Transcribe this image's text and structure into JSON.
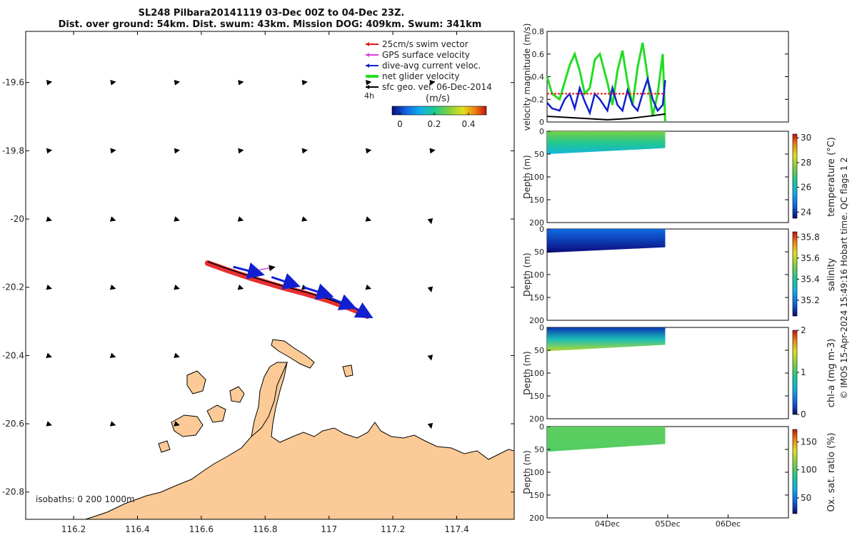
{
  "title": {
    "line1": "SL248 Pilbara20141119 03-Dec 00Z to 04-Dec 23Z.",
    "line2": "Dist. over ground: 54km. Dist. swum: 43km. Mission DOG: 409km. Swum: 341km"
  },
  "footer": "© IMOS 15-Apr-2024 15:49:16 Hobart time. QC flags 1  2",
  "colors": {
    "land": "#fcca96",
    "swim": "#e41a1c",
    "gps": "#e040e0",
    "current": "#1020d0",
    "net": "#22dd22",
    "sfc": "#000000"
  },
  "chart_data": [
    {
      "type": "map",
      "legend": {
        "items": [
          {
            "label": "25cm/s swim vector",
            "color": "#e41a1c"
          },
          {
            "label": "GPS surface velocity",
            "color": "#e040e0"
          },
          {
            "label": "dive-avg current veloc.",
            "color": "#1020d0"
          },
          {
            "label": "net glider velocity",
            "color": "#22dd22"
          },
          {
            "label": "sfc geo. vel. 06-Dec-2014",
            "color": "#000000"
          }
        ],
        "hours": "4h",
        "colorbar_label": "(m/s)",
        "colorbar_ticks": [
          "0",
          "0.2",
          "0.4"
        ],
        "position": "top-right"
      },
      "xlim": [
        116.05,
        117.58
      ],
      "ylim": [
        -20.88,
        -19.45
      ],
      "xticks": [
        116.2,
        116.4,
        116.6,
        116.8,
        117,
        117.2,
        117.4
      ],
      "xtick_labels": [
        "116.2",
        "116.4",
        "116.6",
        "116.8",
        "117",
        "117.2",
        "117.4"
      ],
      "yticks": [
        -19.6,
        -19.8,
        -20,
        -20.2,
        -20.4,
        -20.6,
        -20.8
      ],
      "ytick_labels": [
        "-19.6",
        "-19.8",
        "-20",
        "-20.2",
        "-20.4",
        "-20.6",
        "-20.8"
      ],
      "isobaths": "isobaths: 0   200  1000m",
      "track": {
        "lon": [
          116.62,
          116.68,
          116.76,
          116.85,
          116.93,
          117.0,
          117.06,
          117.1,
          117.12
        ],
        "lat": [
          -20.125,
          -20.145,
          -20.17,
          -20.195,
          -20.215,
          -20.235,
          -20.255,
          -20.27,
          -20.28
        ]
      },
      "current_vectors": [
        {
          "lon": 116.7,
          "lat": -20.14,
          "u": 0.23,
          "v": -0.06
        },
        {
          "lon": 116.82,
          "lat": -20.17,
          "u": 0.21,
          "v": -0.07
        },
        {
          "lon": 116.92,
          "lat": -20.2,
          "u": 0.22,
          "v": -0.07
        },
        {
          "lon": 117.0,
          "lat": -20.23,
          "u": 0.2,
          "v": -0.08
        },
        {
          "lon": 117.06,
          "lat": -20.25,
          "u": 0.18,
          "v": -0.1
        }
      ]
    },
    {
      "type": "line",
      "ylabel": "velocity magnitude (m/s)",
      "ylim": [
        0,
        0.8
      ],
      "yticks": [
        "0",
        "0.2",
        "0.4",
        "0.6",
        "0.8"
      ],
      "xlim": [
        "03-Dec",
        "07-Dec"
      ],
      "series": [
        {
          "color": "#22dd22",
          "x": [
            "03-Dec 00:00",
            "03-Dec 02:00",
            "03-Dec 05:00",
            "03-Dec 07:00",
            "03-Dec 09:00",
            "03-Dec 11:00",
            "03-Dec 13:00",
            "03-Dec 15:00",
            "03-Dec 17:00",
            "03-Dec 19:00",
            "03-Dec 21:00",
            "04-Dec 00:00",
            "04-Dec 02:00",
            "04-Dec 04:00",
            "04-Dec 06:00",
            "04-Dec 08:00",
            "04-Dec 10:00",
            "04-Dec 12:00",
            "04-Dec 14:00",
            "04-Dec 16:00",
            "04-Dec 18:00",
            "04-Dec 20:00",
            "04-Dec 22:00",
            "04-Dec 23:00"
          ],
          "values": [
            0.4,
            0.25,
            0.2,
            0.35,
            0.5,
            0.6,
            0.45,
            0.25,
            0.3,
            0.55,
            0.6,
            0.35,
            0.15,
            0.45,
            0.63,
            0.35,
            0.15,
            0.48,
            0.7,
            0.4,
            0.05,
            0.25,
            0.6,
            0.0
          ]
        },
        {
          "color": "#1020d0",
          "x": [
            "03-Dec 00:00",
            "03-Dec 02:00",
            "03-Dec 05:00",
            "03-Dec 07:00",
            "03-Dec 09:00",
            "03-Dec 11:00",
            "03-Dec 13:00",
            "03-Dec 15:00",
            "03-Dec 17:00",
            "03-Dec 19:00",
            "03-Dec 21:00",
            "04-Dec 00:00",
            "04-Dec 02:00",
            "04-Dec 04:00",
            "04-Dec 06:00",
            "04-Dec 08:00",
            "04-Dec 10:00",
            "04-Dec 12:00",
            "04-Dec 14:00",
            "04-Dec 16:00",
            "04-Dec 18:00",
            "04-Dec 20:00",
            "04-Dec 22:00",
            "04-Dec 23:00"
          ],
          "values": [
            0.17,
            0.12,
            0.1,
            0.2,
            0.25,
            0.12,
            0.3,
            0.18,
            0.08,
            0.25,
            0.2,
            0.1,
            0.3,
            0.15,
            0.1,
            0.28,
            0.15,
            0.1,
            0.25,
            0.38,
            0.2,
            0.1,
            0.15,
            0.37
          ]
        },
        {
          "color": "#e41a1c",
          "x": [
            "03-Dec 00:00",
            "04-Dec 23:00"
          ],
          "values": [
            0.25,
            0.25
          ]
        },
        {
          "color": "#000000",
          "x": [
            "03-Dec 00:00",
            "03-Dec 08:00",
            "03-Dec 16:00",
            "04-Dec 00:00",
            "04-Dec 08:00",
            "04-Dec 16:00",
            "04-Dec 23:00"
          ],
          "values": [
            0.05,
            0.04,
            0.03,
            0.02,
            0.03,
            0.05,
            0.07
          ]
        }
      ]
    },
    {
      "type": "heatmap",
      "ylabel": "Depth (m)",
      "ylim": [
        0,
        200
      ],
      "yticks": [
        "0",
        "50",
        "100",
        "150",
        "200"
      ],
      "cbar_label": "temperature (°C)",
      "cbar_ticks": [
        "24",
        "26",
        "28",
        "30"
      ],
      "cbar_range": [
        23.5,
        30.3
      ],
      "colormap": [
        "#0a0a78",
        "#1060e0",
        "#10b0e8",
        "#20c890",
        "#80d040",
        "#e0e020",
        "#f08010",
        "#c01010"
      ],
      "surface_value": 27.3,
      "deep_value": 25.6,
      "profile_depth_start": 50,
      "profile_depth_end": 37
    },
    {
      "type": "heatmap",
      "ylabel": "Depth (m)",
      "ylim": [
        0,
        200
      ],
      "yticks": [
        "0",
        "50",
        "100",
        "150",
        "200"
      ],
      "cbar_label": "salinity",
      "cbar_ticks": [
        "35.2",
        "35.4",
        "35.6",
        "35.8"
      ],
      "cbar_range": [
        35.05,
        35.85
      ],
      "colormap": [
        "#0a0a78",
        "#1060e0",
        "#10b0e8",
        "#20c890",
        "#80d040",
        "#e0e020",
        "#f08010",
        "#c01010"
      ],
      "surface_value": 35.18,
      "deep_value": 35.05,
      "profile_depth_start": 52,
      "profile_depth_end": 40
    },
    {
      "type": "heatmap",
      "ylabel": "Depth (m)",
      "ylim": [
        0,
        200
      ],
      "yticks": [
        "0",
        "50",
        "100",
        "150",
        "200"
      ],
      "cbar_label": "chl-a (mg m-3)",
      "cbar_ticks": [
        "0",
        "1",
        "2"
      ],
      "cbar_range": [
        0,
        2
      ],
      "colormap": [
        "#0a0a78",
        "#1060e0",
        "#10b0e8",
        "#20c890",
        "#80d040",
        "#e0e020",
        "#f08010",
        "#c01010"
      ],
      "surface_value": 0.15,
      "deep_value": 1.3,
      "profile_depth_start": 52,
      "profile_depth_end": 38
    },
    {
      "type": "heatmap",
      "ylabel": "Depth (m)",
      "ylim": [
        0,
        200
      ],
      "yticks": [
        "0",
        "50",
        "100",
        "150",
        "200"
      ],
      "xtick_labels": [
        "04Dec",
        "05Dec",
        "06Dec"
      ],
      "cbar_label": "Ox. sat. ratio (%)",
      "cbar_ticks": [
        "50",
        "100",
        "150"
      ],
      "cbar_range": [
        22,
        172
      ],
      "colormap": [
        "#0a0a78",
        "#1060e0",
        "#10b0e8",
        "#20c890",
        "#80d040",
        "#e0e020",
        "#f08010",
        "#c01010"
      ],
      "surface_value": 100,
      "deep_value": 98,
      "profile_depth_start": 55,
      "profile_depth_end": 38
    }
  ]
}
